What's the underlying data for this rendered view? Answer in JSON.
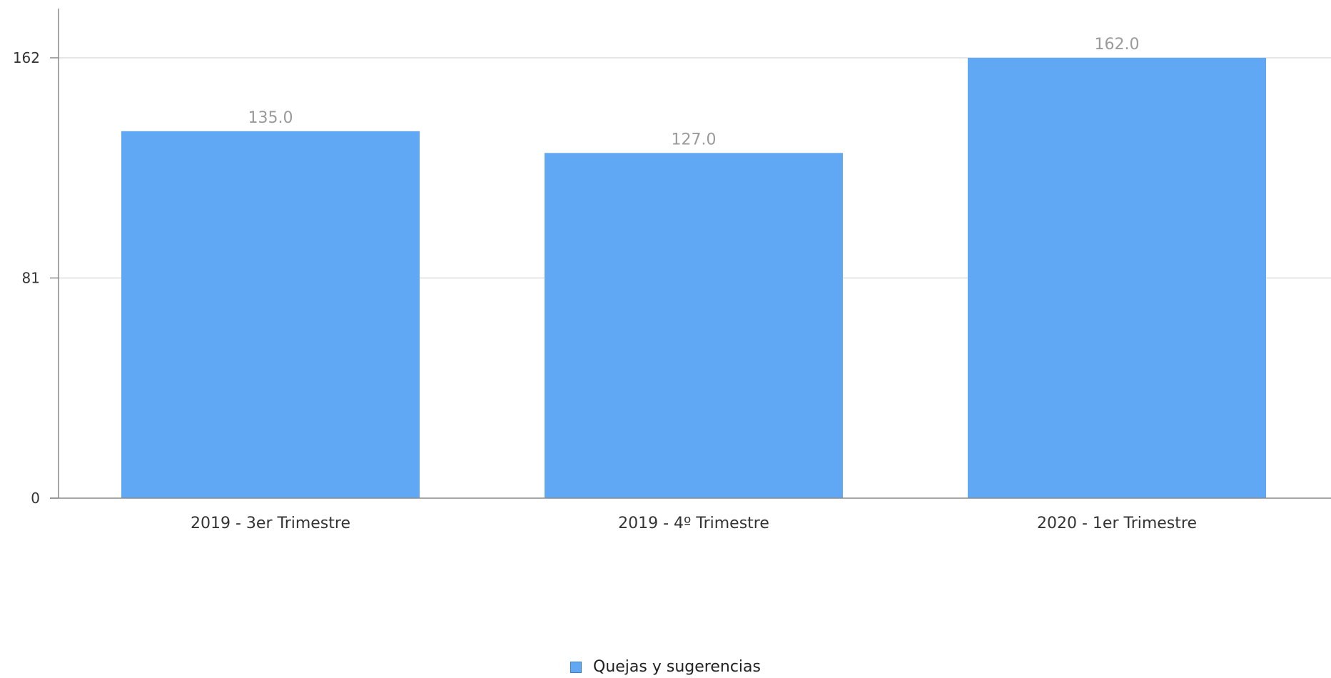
{
  "chart_data": {
    "type": "bar",
    "categories": [
      "2019 - 3er Trimestre",
      "2019 - 4º Trimestre",
      "2020 - 1er Trimestre"
    ],
    "series": [
      {
        "name": "Quejas y sugerencias",
        "values": [
          135.0,
          127.0,
          162.0
        ],
        "value_labels": [
          "135.0",
          "127.0",
          "162.0"
        ],
        "color": "#60a8f4"
      }
    ],
    "y_ticks": [
      0,
      81,
      162
    ],
    "y_tick_labels": [
      "0",
      "81",
      "162"
    ],
    "ylim": [
      0,
      162
    ],
    "grid": true,
    "legend_position": "bottom-center",
    "title": "",
    "xlabel": "",
    "ylabel": ""
  }
}
